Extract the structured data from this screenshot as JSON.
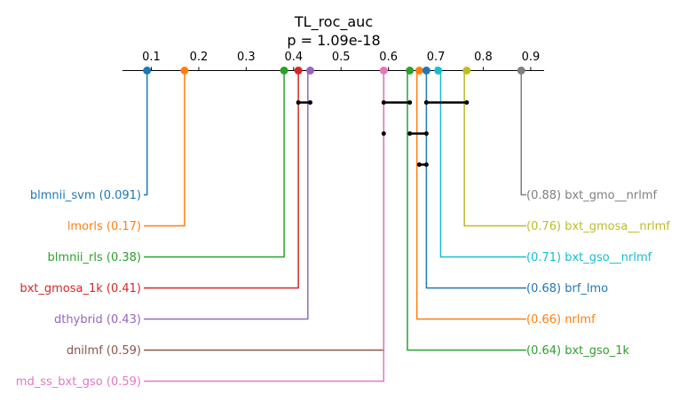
{
  "chart_data": {
    "type": "critical-difference",
    "title": "TL_roc_auc",
    "subtitle": "p = 1.09e-18",
    "xlim": [
      0.05,
      0.93
    ],
    "ticks": [
      "0.1",
      "0.2",
      "0.3",
      "0.4",
      "0.5",
      "0.6",
      "0.7",
      "0.8",
      "0.9"
    ],
    "tick_values": [
      0.1,
      0.2,
      0.3,
      0.4,
      0.5,
      0.6,
      0.7,
      0.8,
      0.9
    ],
    "left_methods": [
      {
        "name": "blmnii_svm",
        "value": 0.091,
        "label": "blmnii_svm (0.091)",
        "color": "#1f77b4"
      },
      {
        "name": "lmorls",
        "value": 0.17,
        "label": "lmorls (0.17)",
        "color": "#ff7f0e"
      },
      {
        "name": "blmnii_rls",
        "value": 0.38,
        "label": "blmnii_rls (0.38)",
        "color": "#2ca02c"
      },
      {
        "name": "bxt_gmosa_1k",
        "value": 0.41,
        "label": "bxt_gmosa_1k (0.41)",
        "color": "#d62728"
      },
      {
        "name": "dthybrid",
        "value": 0.43,
        "label": "dthybrid (0.43)",
        "color": "#9467bd"
      },
      {
        "name": "dnilmf",
        "value": 0.59,
        "label": "dnilmf (0.59)",
        "color": "#8c564b"
      },
      {
        "name": "md_ss_bxt_gso",
        "value": 0.59,
        "label": "md_ss_bxt_gso (0.59)",
        "color": "#e377c2"
      }
    ],
    "right_methods": [
      {
        "name": "bxt_gmo__nrlmf",
        "value": 0.88,
        "label": "(0.88) bxt_gmo__nrlmf",
        "color": "#7f7f7f"
      },
      {
        "name": "bxt_gmosa__nrlmf",
        "value": 0.76,
        "label": "(0.76) bxt_gmosa__nrlmf",
        "color": "#bcbd22"
      },
      {
        "name": "bxt_gso__nrlmf",
        "value": 0.71,
        "label": "(0.71) bxt_gso__nrlmf",
        "color": "#17becf"
      },
      {
        "name": "brf_lmo",
        "value": 0.68,
        "label": "(0.68) brf_lmo",
        "color": "#1f77b4"
      },
      {
        "name": "nrlmf",
        "value": 0.66,
        "label": "(0.66) nrlmf",
        "color": "#ff7f0e"
      },
      {
        "name": "bxt_gso_1k",
        "value": 0.64,
        "label": "(0.64) bxt_gso_1k",
        "color": "#2ca02c"
      }
    ],
    "dot_values": [
      0.091,
      0.17,
      0.38,
      0.41,
      0.435,
      0.59,
      0.645,
      0.665,
      0.68,
      0.705,
      0.765,
      0.88
    ],
    "dot_colors": [
      "#1f77b4",
      "#ff7f0e",
      "#2ca02c",
      "#d62728",
      "#9467bd",
      "#e377c2",
      "#2ca02c",
      "#ff7f0e",
      "#1f77b4",
      "#17becf",
      "#bcbd22",
      "#7f7f7f"
    ],
    "cliques": [
      {
        "row": 0,
        "start": 0.41,
        "end": 0.435
      },
      {
        "row": 0,
        "start": 0.59,
        "end": 0.645
      },
      {
        "row": 0,
        "start": 0.68,
        "end": 0.765
      },
      {
        "row": 1,
        "start": 0.59,
        "end": 0.59
      },
      {
        "row": 1,
        "start": 0.645,
        "end": 0.68
      },
      {
        "row": 2,
        "start": 0.665,
        "end": 0.68
      }
    ]
  }
}
